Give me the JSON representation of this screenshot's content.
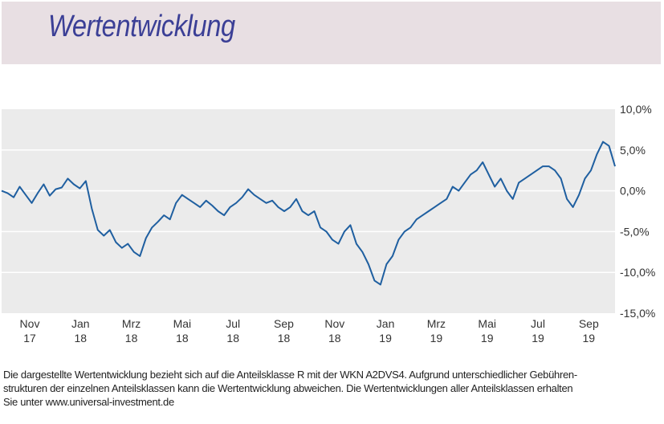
{
  "header": {
    "title": "Wertentwicklung"
  },
  "chart_data": {
    "type": "line",
    "title": "",
    "xlabel": "",
    "ylabel": "",
    "grid": true,
    "y_axis_position": "right",
    "ylim": [
      -15,
      10
    ],
    "y_ticks": [
      "10,0%",
      "5,0%",
      "0,0%",
      "-5,0%",
      "-10,0%",
      "-15,0%"
    ],
    "y_tick_values": [
      10,
      5,
      0,
      -5,
      -10,
      -15
    ],
    "x_ticks": [
      {
        "month": "Nov",
        "year": "17"
      },
      {
        "month": "Jan",
        "year": "18"
      },
      {
        "month": "Mrz",
        "year": "18"
      },
      {
        "month": "Mai",
        "year": "18"
      },
      {
        "month": "Jul",
        "year": "18"
      },
      {
        "month": "Sep",
        "year": "18"
      },
      {
        "month": "Nov",
        "year": "18"
      },
      {
        "month": "Jan",
        "year": "19"
      },
      {
        "month": "Mrz",
        "year": "19"
      },
      {
        "month": "Mai",
        "year": "19"
      },
      {
        "month": "Jul",
        "year": "19"
      },
      {
        "month": "Sep",
        "year": "19"
      }
    ],
    "series_color": "#1f5fa0",
    "series": [
      {
        "x": [
          "2017-10-20",
          "2017-10-27",
          "2017-11-03",
          "2017-11-10",
          "2017-11-17",
          "2017-11-24",
          "2017-12-01",
          "2017-12-08",
          "2017-12-15",
          "2017-12-22",
          "2017-12-29",
          "2018-01-05",
          "2018-01-12",
          "2018-01-19",
          "2018-01-26",
          "2018-02-02",
          "2018-02-09",
          "2018-02-16",
          "2018-02-23",
          "2018-03-02",
          "2018-03-09",
          "2018-03-16",
          "2018-03-23",
          "2018-03-30",
          "2018-04-06",
          "2018-04-13",
          "2018-04-20",
          "2018-04-27",
          "2018-05-04",
          "2018-05-11",
          "2018-05-18",
          "2018-05-25",
          "2018-06-01",
          "2018-06-08",
          "2018-06-15",
          "2018-06-22",
          "2018-06-29",
          "2018-07-06",
          "2018-07-13",
          "2018-07-20",
          "2018-07-27",
          "2018-08-03",
          "2018-08-10",
          "2018-08-17",
          "2018-08-24",
          "2018-08-31",
          "2018-09-07",
          "2018-09-14",
          "2018-09-21",
          "2018-09-28",
          "2018-10-05",
          "2018-10-12",
          "2018-10-19",
          "2018-10-26",
          "2018-11-02",
          "2018-11-09",
          "2018-11-16",
          "2018-11-23",
          "2018-11-30",
          "2018-12-07",
          "2018-12-14",
          "2018-12-21",
          "2018-12-28",
          "2019-01-04",
          "2019-01-11",
          "2019-01-18",
          "2019-01-25",
          "2019-02-01",
          "2019-02-08",
          "2019-02-15",
          "2019-02-22",
          "2019-03-01",
          "2019-03-08",
          "2019-03-15",
          "2019-03-22",
          "2019-03-29",
          "2019-04-05",
          "2019-04-12",
          "2019-04-19",
          "2019-04-26",
          "2019-05-03",
          "2019-05-10",
          "2019-05-17",
          "2019-05-24",
          "2019-05-31",
          "2019-06-07",
          "2019-06-14",
          "2019-06-21",
          "2019-06-28",
          "2019-07-05",
          "2019-07-12",
          "2019-07-19",
          "2019-07-26",
          "2019-08-02",
          "2019-08-09",
          "2019-08-16",
          "2019-08-23",
          "2019-08-30",
          "2019-09-06",
          "2019-09-13",
          "2019-09-20",
          "2019-09-27",
          "2019-10-04"
        ],
        "values": [
          0.0,
          -0.3,
          -0.8,
          0.5,
          -0.5,
          -1.5,
          -0.3,
          0.8,
          -0.6,
          0.2,
          0.4,
          1.5,
          0.8,
          0.3,
          1.2,
          -2.2,
          -4.8,
          -5.5,
          -4.8,
          -6.3,
          -7.0,
          -6.5,
          -7.5,
          -8.0,
          -5.8,
          -4.5,
          -3.8,
          -3.0,
          -3.5,
          -1.5,
          -0.5,
          -1.0,
          -1.5,
          -2.0,
          -1.2,
          -1.8,
          -2.5,
          -3.0,
          -2.0,
          -1.5,
          -0.8,
          0.2,
          -0.5,
          -1.0,
          -1.5,
          -1.2,
          -2.0,
          -2.5,
          -2.0,
          -1.0,
          -2.5,
          -3.0,
          -2.5,
          -4.5,
          -5.0,
          -6.0,
          -6.5,
          -5.0,
          -4.2,
          -6.5,
          -7.5,
          -9.0,
          -11.0,
          -11.5,
          -9.0,
          -8.0,
          -6.0,
          -5.0,
          -4.5,
          -3.5,
          -3.0,
          -2.5,
          -2.0,
          -1.5,
          -1.0,
          0.5,
          0.0,
          1.0,
          2.0,
          2.5,
          3.5,
          2.0,
          0.5,
          1.5,
          0.0,
          -1.0,
          1.0,
          1.5,
          2.0,
          2.5,
          3.0,
          3.0,
          2.5,
          1.5,
          -1.0,
          -2.0,
          -0.5,
          1.5,
          2.5,
          4.5,
          6.0,
          5.5,
          3.0
        ]
      }
    ]
  },
  "footnote": {
    "line1": "Die dargestellte Wertentwicklung bezieht sich auf die Anteilsklasse R mit der WKN A2DVS4. Aufgrund unterschiedlicher Gebühren-",
    "line2": "strukturen der einzelnen Anteilsklassen kann die Wertentwicklung abweichen. Die Wertentwicklungen aller Anteilsklassen erhalten",
    "line3": "Sie unter www.universal-investment.de"
  }
}
